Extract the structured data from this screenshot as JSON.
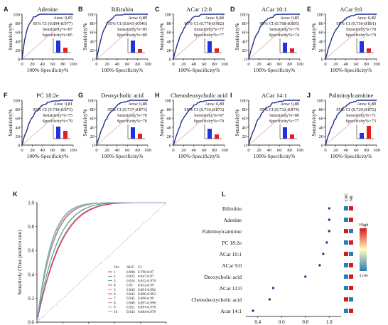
{
  "chart_data": [
    {
      "panel": "A",
      "type": "line",
      "title": "Adenine",
      "auc": "Area: 0.93",
      "ci": "95% CI (0.894-0.977)",
      "sens": "Sensitivity%=87",
      "spec": "Specificity%=85",
      "xlabel": "100%-Specificity%",
      "ylabel": "Sensitivity%",
      "xticks": [
        "0",
        "20",
        "40",
        "60",
        "80",
        "100"
      ],
      "yticks": [
        "0",
        "20",
        "40",
        "60",
        "80",
        "100"
      ],
      "bars": [
        0.85,
        0.35
      ]
    },
    {
      "panel": "B",
      "type": "line",
      "title": "Bilirubin",
      "auc": "Area: 0.89",
      "ci": "95% CI (0.843-0.946)",
      "sens": "Sensitivity%=85",
      "spec": "Specificity%=89",
      "xlabel": "100%-Specificity%",
      "ylabel": "Sensitivity%",
      "xticks": [
        "0",
        "20",
        "40",
        "60",
        "80",
        "100"
      ],
      "yticks": [
        "0",
        "20",
        "40",
        "60",
        "80",
        "100"
      ],
      "bars": [
        0.85,
        0.25
      ]
    },
    {
      "panel": "C",
      "type": "line",
      "title": "ACar 12:0",
      "auc": "Area: 0.84",
      "ci": "95% CI (0.778-0.902)",
      "sens": "Sensitivity%=77",
      "spec": "Specificity%=77",
      "xlabel": "100%-Specificity%",
      "ylabel": "Sensitivity%",
      "xticks": [
        "0",
        "20",
        "40",
        "60",
        "80",
        "100"
      ],
      "yticks": [
        "0",
        "20",
        "40",
        "60",
        "80",
        "100"
      ],
      "bars": [
        0.8,
        0.3
      ]
    },
    {
      "panel": "D",
      "type": "line",
      "title": "ACar 10:1",
      "auc": "Area: 0.83",
      "ci": "95% CI (0.768-0.895)",
      "sens": "Sensitivity%=79",
      "spec": "Specificity%=74",
      "xlabel": "100%-Specificity%",
      "ylabel": "Sensitivity%",
      "xticks": [
        "0",
        "20",
        "40",
        "60",
        "80",
        "100"
      ],
      "yticks": [
        "0",
        "20",
        "40",
        "60",
        "80",
        "100"
      ],
      "bars": [
        0.7,
        0.3
      ]
    },
    {
      "panel": "E",
      "type": "line",
      "title": "ACar 9:0",
      "auc": "Area: 0.82",
      "ci": "95% CI (0.756-0.891)",
      "sens": "Sensitivity%=78",
      "spec": "Specificity%=79",
      "xlabel": "100%-Specificity%",
      "ylabel": "Sensitivity%",
      "xticks": [
        "0",
        "20",
        "40",
        "60",
        "80",
        "100"
      ],
      "yticks": [
        "0",
        "20",
        "40",
        "60",
        "80",
        "100"
      ],
      "bars": [
        0.8,
        0.3
      ]
    },
    {
      "panel": "F",
      "type": "line",
      "title": "PC 18:2e",
      "auc": "Area: 0.81",
      "ci": "95% CI (0.738-0.873)",
      "sens": "Sensitivity%=75",
      "spec": "Specificity%=79",
      "xlabel": "100%-Specificity%",
      "ylabel": "Sensitivity%",
      "xticks": [
        "0",
        "20",
        "40",
        "60",
        "80",
        "100"
      ],
      "yticks": [
        "0",
        "20",
        "40",
        "60",
        "80",
        "100"
      ],
      "bars": [
        0.85,
        0.55
      ]
    },
    {
      "panel": "G",
      "type": "line",
      "title": "Deoxycholic acid",
      "auc": "Area: 0.80",
      "ci": "95% CI (0.737-0.873)",
      "sens": "Sensitivity%=70",
      "spec": "Specificity%=70",
      "xlabel": "100%-Specificity%",
      "ylabel": "Sensitivity%",
      "xticks": [
        "0",
        "20",
        "40",
        "60",
        "80",
        "100"
      ],
      "yticks": [
        "0",
        "20",
        "40",
        "60",
        "80",
        "100"
      ],
      "bars": [
        0.8,
        0.35
      ]
    },
    {
      "panel": "H",
      "type": "line",
      "title": "Chenodeoxycholic acid",
      "auc": "Area: 0.80",
      "ci": "95% CI (0.736-0.873)",
      "sens": "Sensitivity%=87",
      "spec": "Specificity%=70",
      "xlabel": "100%-Specificity%",
      "ylabel": "Sensitivity%",
      "xticks": [
        "0",
        "20",
        "40",
        "60",
        "80",
        "100"
      ],
      "yticks": [
        "0",
        "20",
        "40",
        "60",
        "80",
        "100"
      ],
      "bars": [
        0.7,
        0.3
      ]
    },
    {
      "panel": "I",
      "type": "line",
      "title": "ACar 14:1",
      "auc": "Area: 0.80",
      "ci": "95% CI (0.732-0.874)",
      "sens": "Sensitivity%=80",
      "spec": "Specificity%=77",
      "xlabel": "100%-Specificity%",
      "ylabel": "Sensitivity%",
      "xticks": [
        "0",
        "20",
        "40",
        "60",
        "80",
        "100"
      ],
      "yticks": [
        "0",
        "20",
        "40",
        "60",
        "80",
        "100"
      ],
      "bars": [
        0.8,
        0.3
      ]
    },
    {
      "panel": "J",
      "type": "line",
      "title": "Palmitoylcarnitine",
      "auc": "Area: 0.80",
      "ci": "95% CI (0.729-0.872)",
      "sens": "Sensitivity%=71",
      "spec": "Specificity%=73",
      "xlabel": "100%-Specificity%",
      "ylabel": "Sensitivity%",
      "xticks": [
        "0",
        "20",
        "40",
        "60",
        "80",
        "100"
      ],
      "yticks": [
        "0",
        "20",
        "40",
        "60",
        "80",
        "100"
      ],
      "bars": [
        0.4,
        0.9
      ]
    },
    {
      "panel": "K",
      "type": "line",
      "xlabel": "1-Specificity (False positive rate)",
      "ylabel": "Sensitivity (True positive rate)",
      "xlim": [
        0,
        1
      ],
      "ylim": [
        0,
        1
      ],
      "xticks": [
        "0.0",
        "0.2",
        "0.4",
        "0.6",
        "0.8",
        "1.0"
      ],
      "yticks": [
        "0.0",
        "0.2",
        "0.4",
        "0.6",
        "0.8",
        "1.0"
      ],
      "legend": {
        "headers": [
          "Var.",
          "AUC",
          "CI"
        ],
        "rows": [
          [
            "1",
            "0.906",
            "0.790-0.97"
          ],
          [
            "2",
            "0.925",
            "0.847-0.97"
          ],
          [
            "3",
            "0.924",
            "0.852-0.979"
          ],
          [
            "4",
            "0.91",
            "0.852-0.99"
          ],
          [
            "5",
            "0.943",
            "0.891-0.992"
          ],
          [
            "6",
            "0.942",
            "0.890-0.993"
          ],
          [
            "7",
            "0.945",
            "0.896-0.99"
          ],
          [
            "8",
            "0.949",
            "0.897-0.998"
          ],
          [
            "9",
            "0.951",
            "0.897-0.978"
          ],
          [
            "10",
            "0.943",
            "0.884-0.979"
          ]
        ]
      }
    },
    {
      "panel": "L",
      "type": "scatter",
      "xlabel": "Selected frequency (%)",
      "xlim": [
        0.3,
        1.1
      ],
      "xticks": [
        "0.4",
        "0.6",
        "0.8",
        "1.0"
      ],
      "col_headers": [
        "CRC",
        "NR"
      ],
      "colorbar": {
        "high": "High",
        "low": "Low"
      },
      "categories": [
        "Bilirubin",
        "Adenine",
        "Palmitoylcarnitine",
        "PC 18:2e",
        "ACar 10:1",
        "ACar 9:0",
        "Deoxycholic acid",
        "ACar 12:0",
        "Chenodeoxycholic acid",
        "Acar 14:1"
      ],
      "values": [
        1.0,
        1.0,
        1.0,
        0.98,
        0.95,
        0.92,
        0.8,
        0.53,
        0.5,
        0.36
      ]
    }
  ],
  "colors": {
    "roc": "#1f2f8a",
    "diag": "#e8a0a0",
    "bar_a": "#2233dd",
    "bar_b": "#e21e1e",
    "dot": "#1a2a8a",
    "high": "#d7191c",
    "low": "#2c7bb6"
  }
}
